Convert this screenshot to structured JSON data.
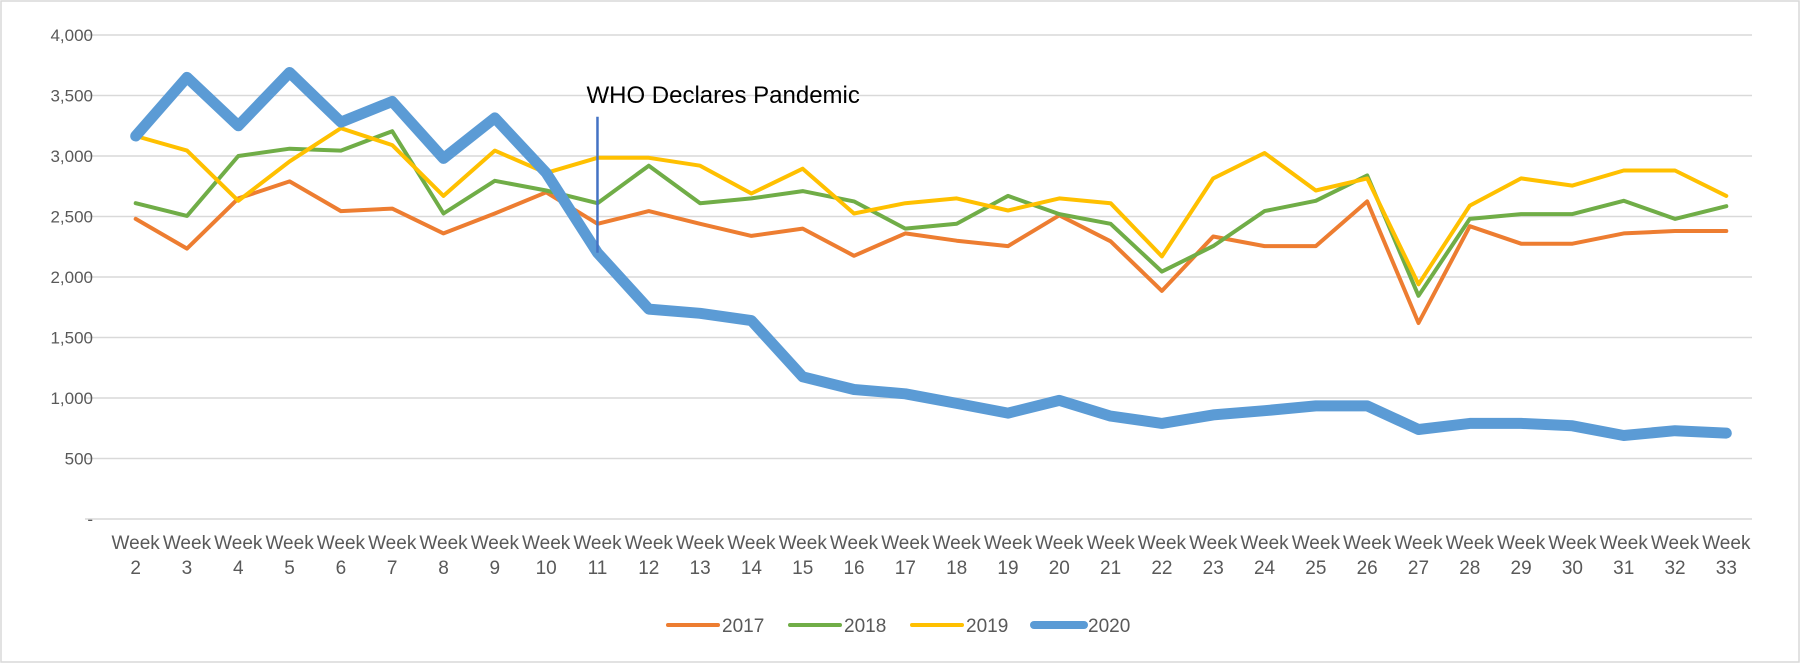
{
  "chart_data": {
    "type": "line",
    "title": "",
    "xlabel": "",
    "ylabel": "",
    "categories": [
      "Week 2",
      "Week 3",
      "Week 4",
      "Week 5",
      "Week 6",
      "Week 7",
      "Week 8",
      "Week 9",
      "Week 10",
      "Week 11",
      "Week 12",
      "Week 13",
      "Week 14",
      "Week 15",
      "Week 16",
      "Week 17",
      "Week 18",
      "Week 19",
      "Week 20",
      "Week 21",
      "Week 22",
      "Week 23",
      "Week 24",
      "Week 25",
      "Week 26",
      "Week 27",
      "Week 28",
      "Week 29",
      "Week 30",
      "Week 31",
      "Week 32",
      "Week 33"
    ],
    "category_lines": [
      [
        "Week",
        "2"
      ],
      [
        "Week",
        "3"
      ],
      [
        "Week",
        "4"
      ],
      [
        "Week",
        "5"
      ],
      [
        "Week",
        "6"
      ],
      [
        "Week",
        "7"
      ],
      [
        "Week",
        "8"
      ],
      [
        "Week",
        "9"
      ],
      [
        "Week",
        "10"
      ],
      [
        "Week",
        "11"
      ],
      [
        "Week",
        "12"
      ],
      [
        "Week",
        "13"
      ],
      [
        "Week",
        "14"
      ],
      [
        "Week",
        "15"
      ],
      [
        "Week",
        "16"
      ],
      [
        "Week",
        "17"
      ],
      [
        "Week",
        "18"
      ],
      [
        "Week",
        "19"
      ],
      [
        "Week",
        "20"
      ],
      [
        "Week",
        "21"
      ],
      [
        "Week",
        "22"
      ],
      [
        "Week",
        "23"
      ],
      [
        "Week",
        "24"
      ],
      [
        "Week",
        "25"
      ],
      [
        "Week",
        "26"
      ],
      [
        "Week",
        "27"
      ],
      [
        "Week",
        "28"
      ],
      [
        "Week",
        "29"
      ],
      [
        "Week",
        "30"
      ],
      [
        "Week",
        "31"
      ],
      [
        "Week",
        "32"
      ],
      [
        "Week",
        "33"
      ]
    ],
    "ylim": [
      0,
      4000
    ],
    "yticks": [
      {
        "value": 0,
        "label": "-"
      },
      {
        "value": 500,
        "label": "500"
      },
      {
        "value": 1000,
        "label": "1,000"
      },
      {
        "value": 1500,
        "label": "1,500"
      },
      {
        "value": 2000,
        "label": "2,000"
      },
      {
        "value": 2500,
        "label": "2,500"
      },
      {
        "value": 3000,
        "label": "3,000"
      },
      {
        "value": 3500,
        "label": "3,500"
      },
      {
        "value": 4000,
        "label": "4,000"
      }
    ],
    "grid": true,
    "legend_position": "bottom",
    "series": [
      {
        "name": "2017",
        "color": "#ED7D31",
        "width": 4,
        "values": [
          2480,
          2235,
          2650,
          2790,
          2545,
          2565,
          2360,
          2525,
          2700,
          2440,
          2545,
          2440,
          2340,
          2400,
          2175,
          2360,
          2300,
          2255,
          2510,
          2295,
          1885,
          2335,
          2255,
          2255,
          2625,
          1620,
          2420,
          2275,
          2275,
          2360,
          2380,
          2380
        ]
      },
      {
        "name": "2018",
        "color": "#70AD47",
        "width": 4,
        "values": [
          2610,
          2505,
          3000,
          3060,
          3045,
          3205,
          2525,
          2795,
          2715,
          2610,
          2920,
          2610,
          2650,
          2710,
          2625,
          2400,
          2440,
          2670,
          2520,
          2440,
          2045,
          2255,
          2545,
          2630,
          2840,
          1845,
          2480,
          2520,
          2520,
          2630,
          2480,
          2585
        ]
      },
      {
        "name": "2019",
        "color": "#FFC000",
        "width": 4,
        "values": [
          3165,
          3045,
          2630,
          2955,
          3230,
          3090,
          2670,
          3045,
          2860,
          2985,
          2985,
          2920,
          2690,
          2895,
          2525,
          2610,
          2650,
          2550,
          2650,
          2610,
          2170,
          2815,
          3025,
          2715,
          2815,
          1940,
          2590,
          2815,
          2755,
          2880,
          2880,
          2670
        ]
      },
      {
        "name": "2020",
        "color": "#5B9BD5",
        "width": 11,
        "values": [
          3165,
          3650,
          3250,
          3690,
          3280,
          3450,
          2980,
          3315,
          2860,
          2200,
          1735,
          1700,
          1640,
          1175,
          1070,
          1035,
          955,
          875,
          980,
          850,
          790,
          860,
          895,
          935,
          935,
          740,
          790,
          790,
          770,
          690,
          730,
          710
        ]
      }
    ],
    "annotations": [
      {
        "text": "WHO Declares Pandemic",
        "x": "Week 11",
        "y_top": 3300,
        "y_bottom": 2200,
        "color": "#4472C4"
      }
    ]
  }
}
